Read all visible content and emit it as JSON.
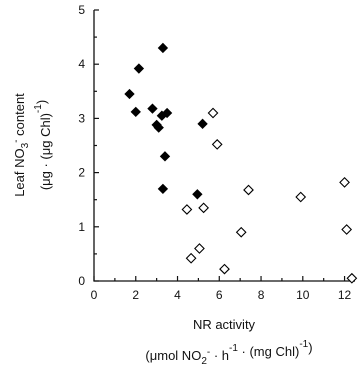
{
  "chart_data": {
    "type": "scatter",
    "xlabel_line1": "NR activity",
    "xlabel_line2_parts": [
      "(μmol NO",
      "2",
      "-",
      " · h",
      "-1",
      " · (mg  Chl)",
      "-1",
      ")"
    ],
    "ylabel_line1_parts": [
      "Leaf NO",
      "3",
      "-",
      " content"
    ],
    "ylabel_line2_parts": [
      "(μg · (μg Chl)",
      "-1",
      ")"
    ],
    "xlim": [
      0,
      12.5
    ],
    "ylim": [
      0,
      5
    ],
    "x_ticks": [
      "0",
      "2",
      "4",
      "6",
      "8",
      "10",
      "12"
    ],
    "y_ticks": [
      "0",
      "1",
      "2",
      "3",
      "4",
      "5"
    ],
    "grid": false,
    "series": [
      {
        "marker": "filled-diamond",
        "color": "#000000",
        "points": [
          {
            "x": 1.7,
            "y": 3.45
          },
          {
            "x": 2.0,
            "y": 3.12
          },
          {
            "x": 2.15,
            "y": 3.92
          },
          {
            "x": 2.8,
            "y": 3.18
          },
          {
            "x": 3.0,
            "y": 2.88
          },
          {
            "x": 3.1,
            "y": 2.83
          },
          {
            "x": 3.25,
            "y": 3.05
          },
          {
            "x": 3.3,
            "y": 4.3
          },
          {
            "x": 3.5,
            "y": 3.1
          },
          {
            "x": 3.4,
            "y": 2.3
          },
          {
            "x": 3.3,
            "y": 1.7
          },
          {
            "x": 5.2,
            "y": 2.9
          },
          {
            "x": 4.95,
            "y": 1.6
          }
        ]
      },
      {
        "marker": "open-diamond",
        "color": "#000000",
        "points": [
          {
            "x": 5.7,
            "y": 3.1
          },
          {
            "x": 5.9,
            "y": 2.52
          },
          {
            "x": 7.4,
            "y": 1.68
          },
          {
            "x": 4.45,
            "y": 1.32
          },
          {
            "x": 5.25,
            "y": 1.35
          },
          {
            "x": 4.65,
            "y": 0.42
          },
          {
            "x": 5.05,
            "y": 0.6
          },
          {
            "x": 6.25,
            "y": 0.22
          },
          {
            "x": 7.05,
            "y": 0.9
          },
          {
            "x": 9.9,
            "y": 1.55
          },
          {
            "x": 12.0,
            "y": 1.82
          },
          {
            "x": 12.1,
            "y": 0.95
          },
          {
            "x": 12.35,
            "y": 0.05
          }
        ]
      }
    ]
  }
}
